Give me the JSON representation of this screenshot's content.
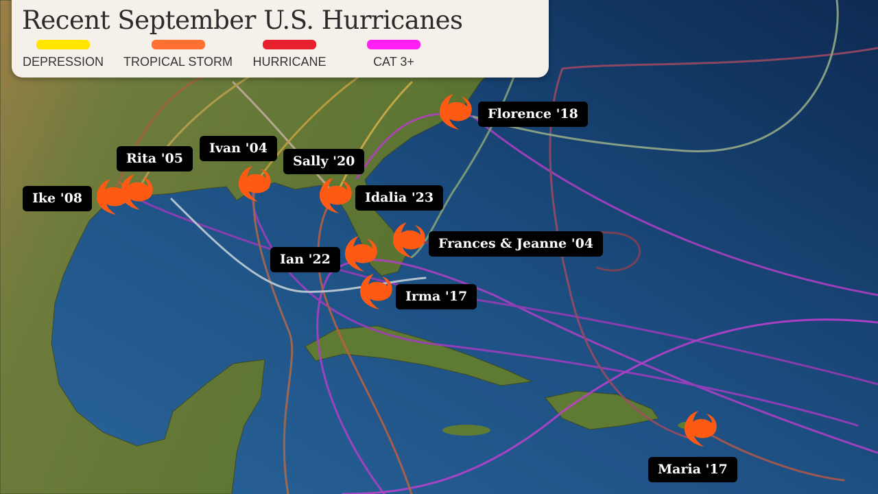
{
  "title": "Recent September U.S. Hurricanes",
  "legend": [
    {
      "label": "DEPRESSION",
      "color": "#ffe600"
    },
    {
      "label": "TROPICAL STORM",
      "color": "#ff7033"
    },
    {
      "label": "HURRICANE",
      "color": "#e8202e"
    },
    {
      "label": "CAT 3+",
      "color": "#ff1ff5"
    }
  ],
  "storms": [
    {
      "label": "Florence '18"
    },
    {
      "label": "Rita '05"
    },
    {
      "label": "Ivan '04"
    },
    {
      "label": "Sally '20"
    },
    {
      "label": "Ike '08"
    },
    {
      "label": "Idalia '23"
    },
    {
      "label": "Frances & Jeanne '04"
    },
    {
      "label": "Ian '22"
    },
    {
      "label": "Irma '17"
    },
    {
      "label": "Maria '17"
    }
  ],
  "icon": "hurricane-icon",
  "icon_color": "#ff5a14"
}
